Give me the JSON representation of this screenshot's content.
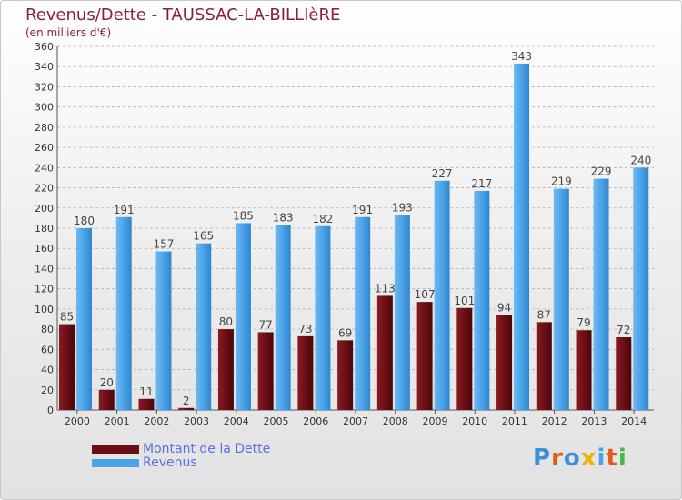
{
  "header": {
    "title": "Revenus/Dette - TAUSSAC-LA-BILLIèRE",
    "subtitle": "(en milliers d'€)"
  },
  "legend": {
    "items": [
      {
        "label": "Montant de la Dette",
        "color": "#6b0f15"
      },
      {
        "label": "Revenus",
        "color": "#4aa3e8"
      }
    ]
  },
  "logo": {
    "text": "Proxiti",
    "colors": [
      "#3a8fd6",
      "#e05a1a",
      "#3a8fd6",
      "#f0b400",
      "#4aa3e8",
      "#e05a1a",
      "#48b848"
    ]
  },
  "colors": {
    "title": "#8b1f3a",
    "debt": "#6b0f15",
    "revenue": "#4aa3e8",
    "grid": "#b0b0b0"
  },
  "chart_data": {
    "type": "bar",
    "categories": [
      "2000",
      "2001",
      "2002",
      "2003",
      "2004",
      "2005",
      "2006",
      "2007",
      "2008",
      "2009",
      "2010",
      "2011",
      "2012",
      "2013",
      "2014"
    ],
    "series": [
      {
        "name": "Montant de la Dette",
        "values": [
          85,
          20,
          11,
          2,
          80,
          77,
          73,
          69,
          113,
          107,
          101,
          94,
          87,
          79,
          72
        ]
      },
      {
        "name": "Revenus",
        "values": [
          180,
          191,
          157,
          165,
          185,
          183,
          182,
          191,
          193,
          227,
          217,
          343,
          219,
          229,
          240
        ]
      }
    ],
    "y_ticks": [
      0,
      20,
      40,
      60,
      80,
      100,
      120,
      140,
      160,
      180,
      200,
      220,
      240,
      260,
      280,
      300,
      320,
      340,
      360
    ],
    "ylim": [
      0,
      360
    ],
    "grid": true,
    "legend_position": "bottom-left"
  }
}
